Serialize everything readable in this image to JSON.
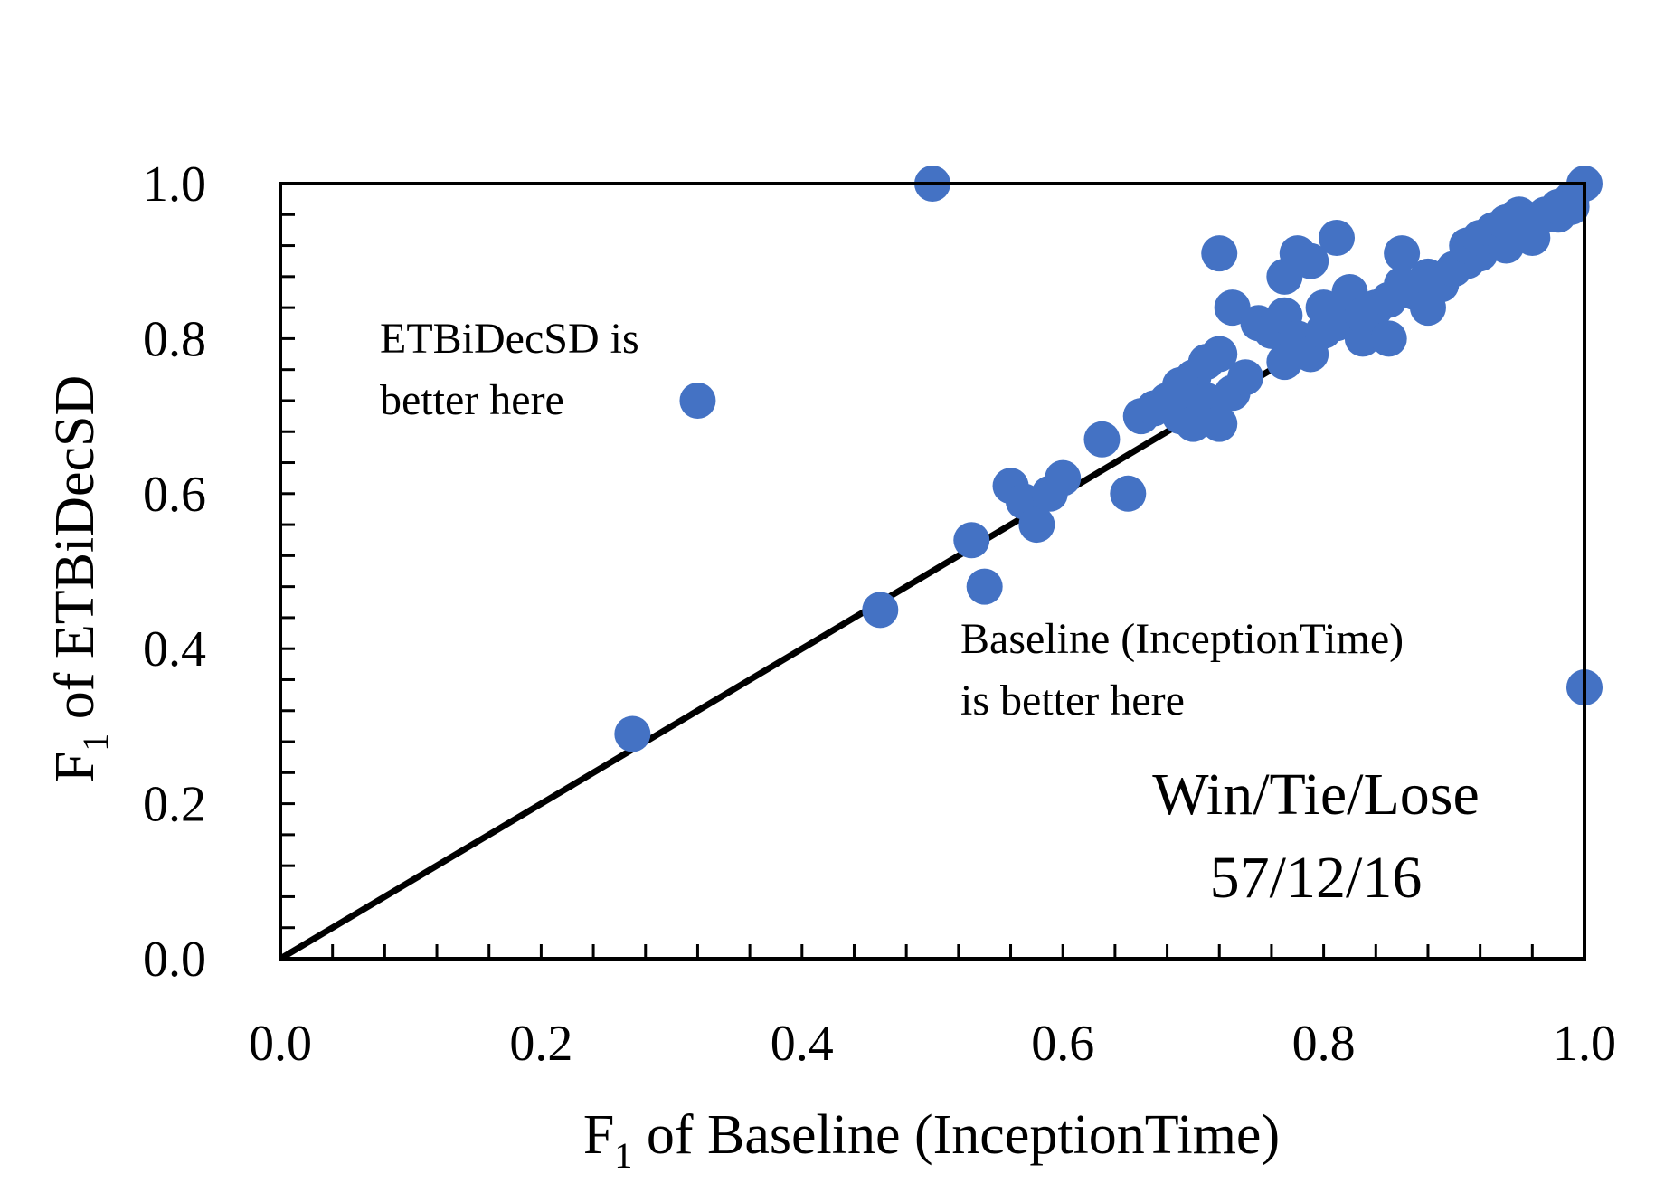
{
  "chart_data": {
    "type": "scatter",
    "xlabel": {
      "main": "F",
      "sub": "1",
      "rest": " of Baseline (InceptionTime)"
    },
    "ylabel": {
      "main": "F",
      "sub": "1",
      "rest": " of ETBiDecSD"
    },
    "xlim": [
      0,
      1
    ],
    "ylim": [
      0,
      1
    ],
    "x_ticks": [
      0.0,
      0.2,
      0.4,
      0.6,
      0.8,
      1.0
    ],
    "y_ticks": [
      0.0,
      0.2,
      0.4,
      0.6,
      0.8,
      1.0
    ],
    "x_tick_labels": [
      "0.0",
      "0.2",
      "0.4",
      "0.6",
      "0.8",
      "1.0"
    ],
    "y_tick_labels": [
      "0.0",
      "0.2",
      "0.4",
      "0.6",
      "0.8",
      "1.0"
    ],
    "minor_tick_step": 0.04,
    "diagonal_line": [
      [
        0,
        0
      ],
      [
        1,
        1
      ]
    ],
    "grid": false,
    "annotations": {
      "upper_left": [
        "ETBiDecSD is",
        "better here"
      ],
      "lower_right": [
        "Baseline (InceptionTime)",
        "is better here"
      ],
      "summary": [
        "Win/Tie/Lose",
        "57/12/16"
      ]
    },
    "colors": {
      "points": "#4472c4",
      "line": "#000000",
      "axes": "#000000"
    },
    "points": [
      [
        0.27,
        0.29
      ],
      [
        0.32,
        0.72
      ],
      [
        0.46,
        0.45
      ],
      [
        0.5,
        1.0
      ],
      [
        0.53,
        0.54
      ],
      [
        0.54,
        0.48
      ],
      [
        0.56,
        0.61
      ],
      [
        0.57,
        0.59
      ],
      [
        0.58,
        0.56
      ],
      [
        0.59,
        0.6
      ],
      [
        0.6,
        0.62
      ],
      [
        0.63,
        0.67
      ],
      [
        0.65,
        0.6
      ],
      [
        0.66,
        0.7
      ],
      [
        0.67,
        0.71
      ],
      [
        0.68,
        0.72
      ],
      [
        0.69,
        0.7
      ],
      [
        0.69,
        0.74
      ],
      [
        0.7,
        0.69
      ],
      [
        0.7,
        0.75
      ],
      [
        0.71,
        0.72
      ],
      [
        0.71,
        0.77
      ],
      [
        0.72,
        0.78
      ],
      [
        0.72,
        0.69
      ],
      [
        0.72,
        0.91
      ],
      [
        0.73,
        0.73
      ],
      [
        0.73,
        0.84
      ],
      [
        0.74,
        0.75
      ],
      [
        0.75,
        0.82
      ],
      [
        0.76,
        0.81
      ],
      [
        0.77,
        0.83
      ],
      [
        0.77,
        0.77
      ],
      [
        0.77,
        0.88
      ],
      [
        0.78,
        0.91
      ],
      [
        0.78,
        0.8
      ],
      [
        0.79,
        0.78
      ],
      [
        0.79,
        0.9
      ],
      [
        0.8,
        0.84
      ],
      [
        0.8,
        0.81
      ],
      [
        0.81,
        0.93
      ],
      [
        0.81,
        0.82
      ],
      [
        0.82,
        0.86
      ],
      [
        0.83,
        0.8
      ],
      [
        0.83,
        0.83
      ],
      [
        0.84,
        0.84
      ],
      [
        0.85,
        0.8
      ],
      [
        0.85,
        0.85
      ],
      [
        0.86,
        0.91
      ],
      [
        0.86,
        0.87
      ],
      [
        0.87,
        0.86
      ],
      [
        0.88,
        0.84
      ],
      [
        0.88,
        0.88
      ],
      [
        0.89,
        0.87
      ],
      [
        0.9,
        0.89
      ],
      [
        0.91,
        0.9
      ],
      [
        0.91,
        0.92
      ],
      [
        0.92,
        0.91
      ],
      [
        0.92,
        0.93
      ],
      [
        0.93,
        0.94
      ],
      [
        0.94,
        0.92
      ],
      [
        0.94,
        0.95
      ],
      [
        0.95,
        0.96
      ],
      [
        0.96,
        0.93
      ],
      [
        0.96,
        0.95
      ],
      [
        0.97,
        0.96
      ],
      [
        0.98,
        0.96
      ],
      [
        0.98,
        0.97
      ],
      [
        0.99,
        0.98
      ],
      [
        0.99,
        0.97
      ],
      [
        1.0,
        1.0
      ],
      [
        1.0,
        0.35
      ]
    ]
  }
}
